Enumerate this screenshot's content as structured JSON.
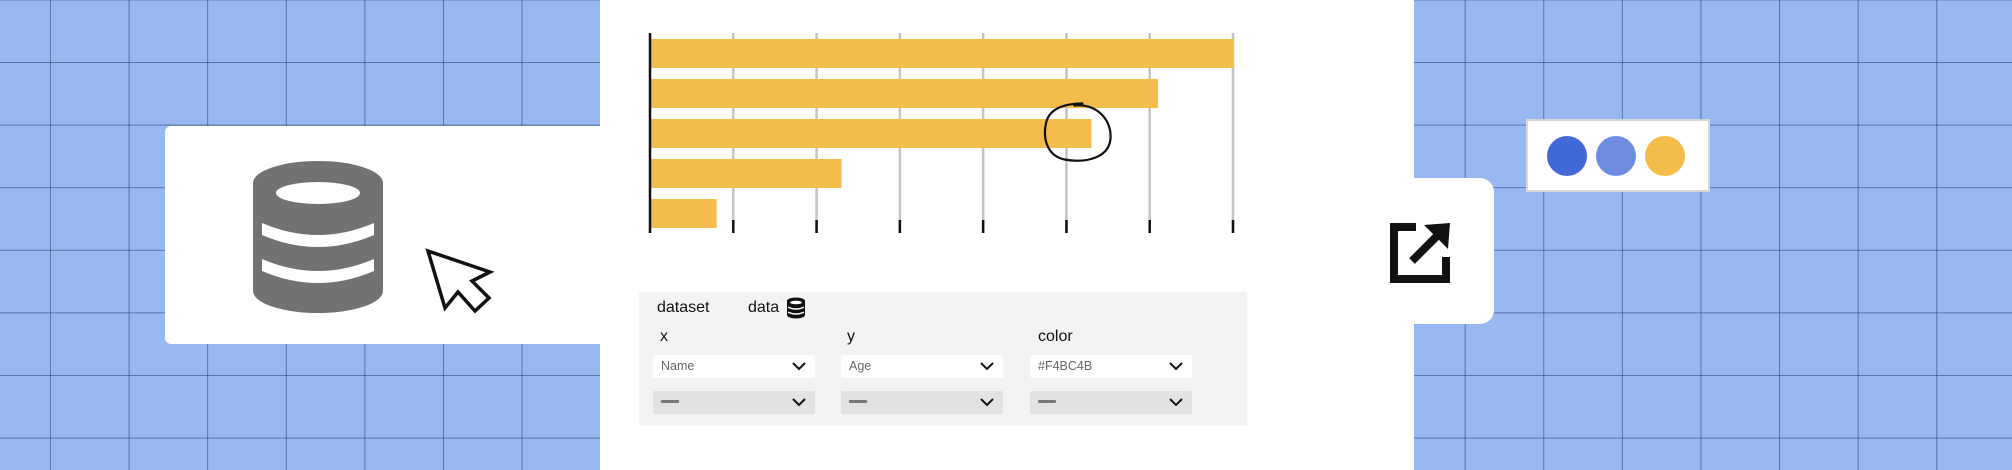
{
  "chart_data": {
    "type": "bar",
    "orientation": "horizontal",
    "values": [
      7,
      6.1,
      5.3,
      2.3,
      0.8
    ],
    "xlim": [
      0,
      7
    ],
    "ticks": [
      0,
      1,
      2,
      3,
      4,
      5,
      6,
      7
    ],
    "grid": true,
    "bar_color": "#F4BC4B",
    "annotation": {
      "type": "circle",
      "bar_index": 2
    }
  },
  "config": {
    "dataset_label": "dataset",
    "dataset_value": "data",
    "fields": [
      {
        "label": "x",
        "value": "Name"
      },
      {
        "label": "y",
        "value": "Age"
      },
      {
        "label": "color",
        "value": "#F4BC4B"
      }
    ]
  },
  "palette": {
    "colors": [
      "#4169d6",
      "#6d8de0",
      "#F4BC4B"
    ]
  },
  "icons": {
    "left": [
      "database-icon",
      "cursor-icon"
    ],
    "share": "external-link-icon"
  }
}
